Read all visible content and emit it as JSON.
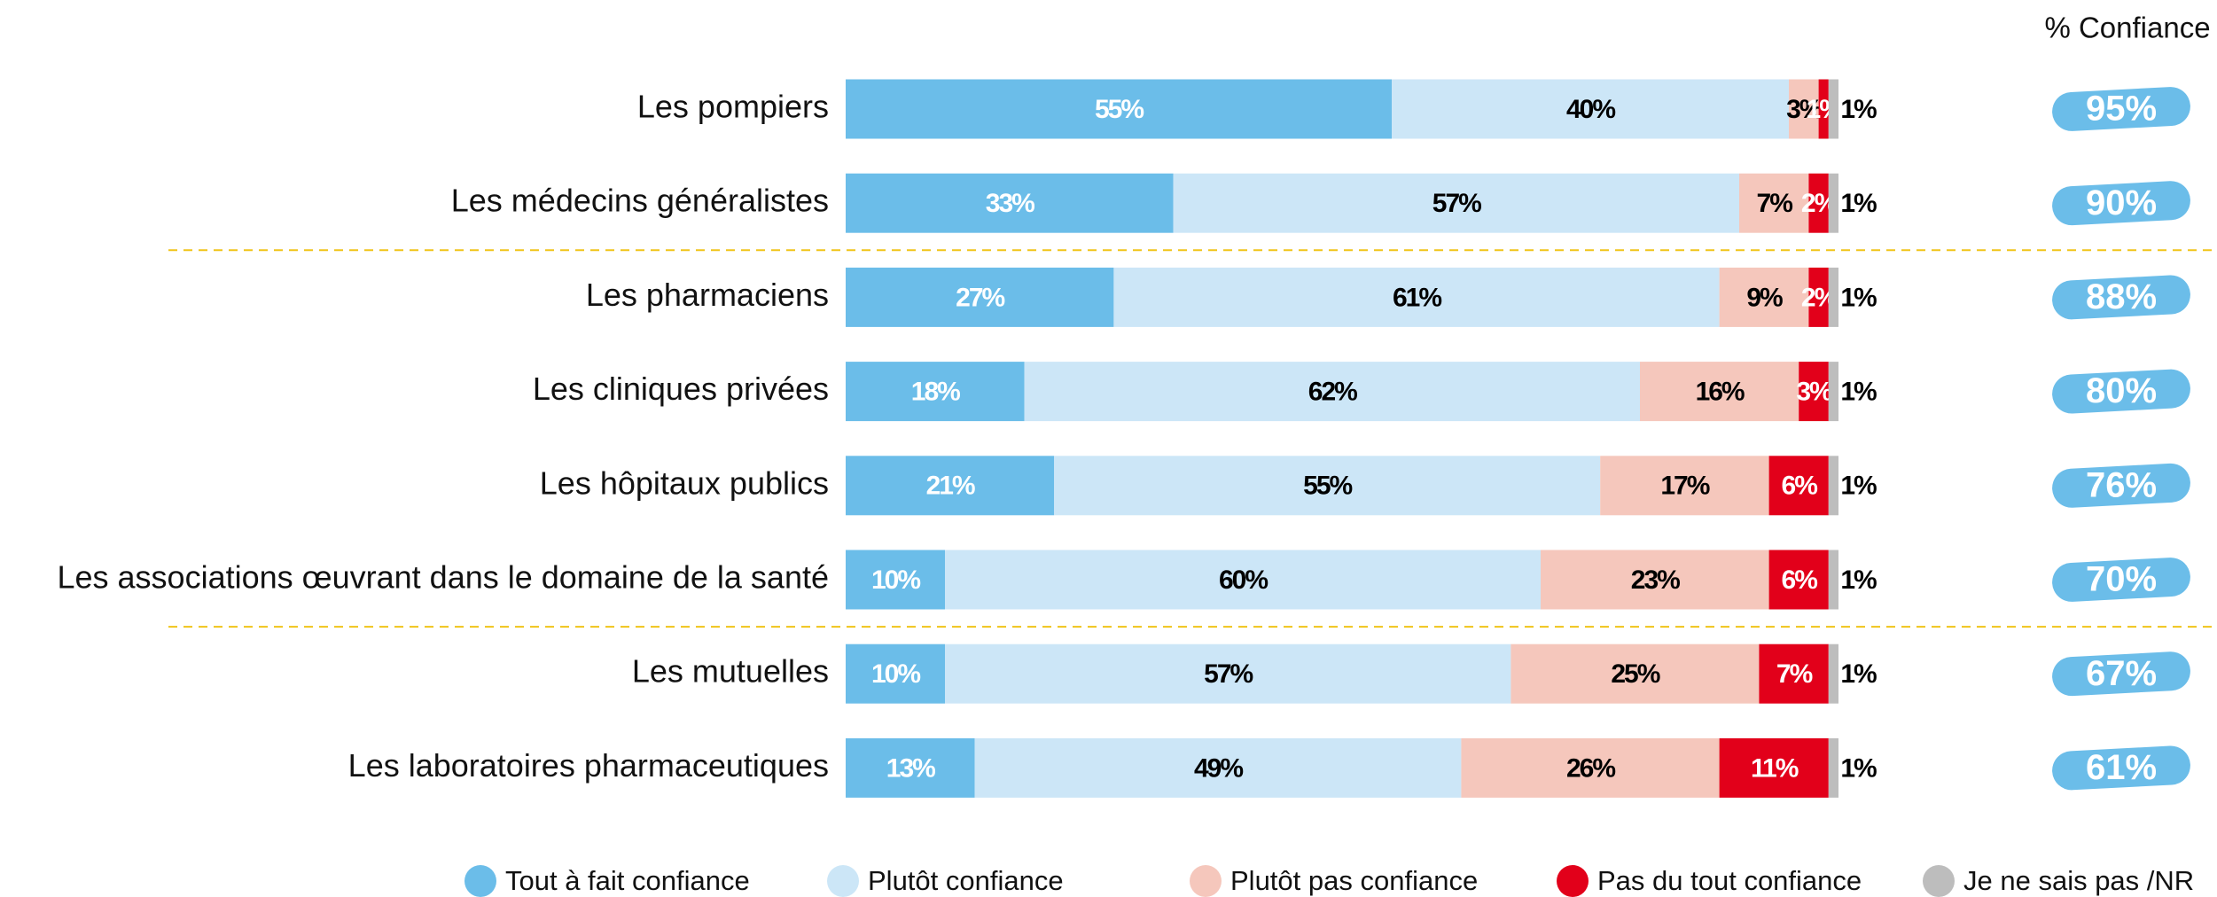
{
  "chart_data": {
    "type": "stacked_bar_horizontal",
    "categories": [
      "Les pompiers",
      "Les médecins généralistes",
      "Les pharmaciens",
      "Les cliniques privées",
      "Les hôpitaux publics",
      "Les associations œuvrant dans le domaine de la santé",
      "Les mutuelles",
      "Les laboratoires pharmaceutiques"
    ],
    "series": [
      {
        "name": "Tout à fait confiance",
        "color": "#6bbde9",
        "values": [
          55,
          33,
          27,
          18,
          21,
          10,
          10,
          13
        ],
        "value_labels": [
          "55%",
          "33%",
          "27%",
          "18%",
          "21%",
          "10%",
          "10%",
          "13%"
        ]
      },
      {
        "name": "Plutôt confiance",
        "color": "#cce6f7",
        "values": [
          40,
          57,
          61,
          62,
          55,
          60,
          57,
          49
        ],
        "value_labels": [
          "40%",
          "57%",
          "61%",
          "62%",
          "55%",
          "60%",
          "57%",
          "49%"
        ]
      },
      {
        "name": "Plutôt pas confiance",
        "color": "#f5c7bc",
        "values": [
          3,
          7,
          9,
          16,
          17,
          23,
          25,
          26
        ],
        "value_labels": [
          "3%",
          "7%",
          "9%",
          "16%",
          "17%",
          "23%",
          "25%",
          "26%"
        ]
      },
      {
        "name": "Pas du tout confiance",
        "color": "#e2001a",
        "values": [
          1,
          2,
          2,
          3,
          6,
          6,
          7,
          11
        ],
        "value_labels": [
          "1%",
          "2%",
          "2%",
          "3%",
          "6%",
          "6%",
          "7%",
          "11%"
        ]
      },
      {
        "name": "Je ne sais pas /NR",
        "color": "#bdbdbd",
        "values": [
          1,
          1,
          1,
          1,
          1,
          1,
          1,
          1
        ],
        "value_labels": [
          "1%",
          "1%",
          "1%",
          "1%",
          "1%",
          "1%",
          "1%",
          "1%"
        ]
      }
    ],
    "confidence": {
      "title": "% Confiance",
      "color": "#6bbde9",
      "values": [
        95,
        90,
        88,
        80,
        76,
        70,
        67,
        61
      ],
      "value_labels": [
        "95%",
        "90%",
        "88%",
        "80%",
        "76%",
        "70%",
        "67%",
        "61%"
      ]
    }
  }
}
